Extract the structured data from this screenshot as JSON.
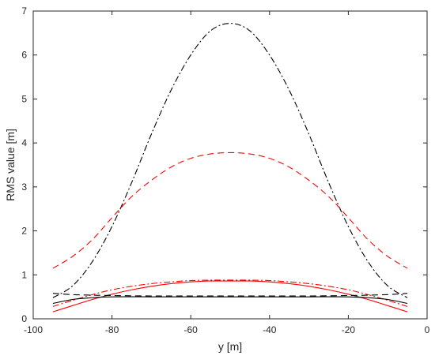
{
  "chart_data": {
    "type": "line",
    "title": "",
    "xlabel": "y [m]",
    "ylabel": "RMS value [m]",
    "xlim": [
      -100,
      0
    ],
    "ylim": [
      0,
      7
    ],
    "xticks": [
      -100,
      -80,
      -60,
      -40,
      -20,
      0
    ],
    "yticks": [
      0,
      1,
      2,
      3,
      4,
      5,
      6,
      7
    ],
    "grid": false,
    "legend": false,
    "series": [
      {
        "color": "#000000",
        "style": "dashdot",
        "x": [
          -95,
          -90,
          -85,
          -80,
          -75,
          -70,
          -65,
          -60,
          -55,
          -50,
          -45,
          -40,
          -35,
          -30,
          -25,
          -20,
          -15,
          -10,
          -5
        ],
        "y": [
          0.48,
          0.75,
          1.3,
          2.1,
          3.1,
          4.2,
          5.2,
          6.0,
          6.55,
          6.72,
          6.55,
          6.0,
          5.2,
          4.2,
          3.1,
          2.1,
          1.3,
          0.75,
          0.48
        ]
      },
      {
        "color": "#ff0000",
        "style": "dashed",
        "x": [
          -95,
          -90,
          -85,
          -80,
          -75,
          -70,
          -65,
          -60,
          -55,
          -50,
          -45,
          -40,
          -35,
          -30,
          -25,
          -20,
          -15,
          -10,
          -5
        ],
        "y": [
          1.15,
          1.42,
          1.8,
          2.3,
          2.78,
          3.15,
          3.45,
          3.65,
          3.75,
          3.78,
          3.75,
          3.65,
          3.45,
          3.15,
          2.78,
          2.3,
          1.8,
          1.42,
          1.15
        ]
      },
      {
        "color": "#ff0000",
        "style": "dashdot",
        "x": [
          -95,
          -90,
          -85,
          -80,
          -75,
          -70,
          -65,
          -60,
          -55,
          -50,
          -45,
          -40,
          -35,
          -30,
          -25,
          -20,
          -15,
          -10,
          -5
        ],
        "y": [
          0.28,
          0.42,
          0.55,
          0.66,
          0.74,
          0.8,
          0.84,
          0.87,
          0.88,
          0.88,
          0.88,
          0.87,
          0.84,
          0.8,
          0.74,
          0.66,
          0.55,
          0.42,
          0.28
        ]
      },
      {
        "color": "#ff0000",
        "style": "solid",
        "x": [
          -95,
          -90,
          -85,
          -80,
          -75,
          -70,
          -65,
          -60,
          -55,
          -50,
          -45,
          -40,
          -35,
          -30,
          -25,
          -20,
          -15,
          -10,
          -5
        ],
        "y": [
          0.16,
          0.3,
          0.44,
          0.56,
          0.66,
          0.74,
          0.8,
          0.84,
          0.86,
          0.86,
          0.86,
          0.84,
          0.8,
          0.74,
          0.66,
          0.56,
          0.44,
          0.3,
          0.16
        ]
      },
      {
        "color": "#000000",
        "style": "dashed",
        "x": [
          -95,
          -90,
          -80,
          -70,
          -60,
          -50,
          -40,
          -30,
          -20,
          -10,
          -5
        ],
        "y": [
          0.58,
          0.55,
          0.53,
          0.52,
          0.52,
          0.52,
          0.52,
          0.52,
          0.53,
          0.55,
          0.58
        ]
      },
      {
        "color": "#000000",
        "style": "solid",
        "x": [
          -95,
          -90,
          -85,
          -80,
          -70,
          -60,
          -50,
          -40,
          -30,
          -20,
          -15,
          -10,
          -5
        ],
        "y": [
          0.35,
          0.44,
          0.48,
          0.5,
          0.5,
          0.5,
          0.5,
          0.5,
          0.5,
          0.5,
          0.48,
          0.44,
          0.35
        ]
      }
    ]
  }
}
